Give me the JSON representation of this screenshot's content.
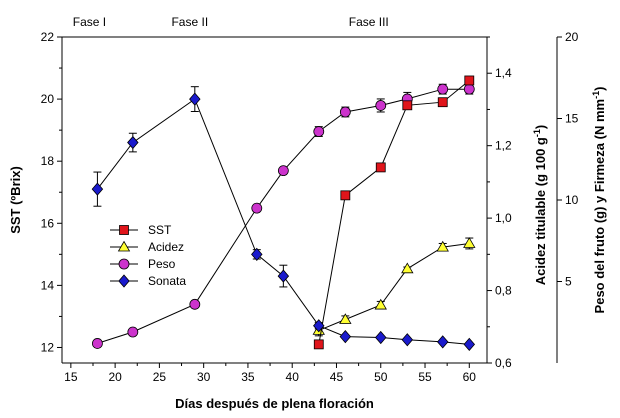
{
  "chart_data": {
    "type": "line",
    "phases": [
      "Fase I",
      "Fase II",
      "Fase III"
    ],
    "xlabel": "Días después de plena floración",
    "ylabel_left": "SST (ºBrix)",
    "ylabel_right1": "Acidez titulable (g 100 g",
    "ylabel_right1_sup": "-1",
    "ylabel_right1_end": ")",
    "ylabel_right2": "Peso del fruto (g) y Firmeza (N mm",
    "ylabel_right2_sup": "-1",
    "ylabel_right2_end": ")",
    "xlim": [
      14,
      62
    ],
    "xticks": [
      15,
      20,
      25,
      30,
      35,
      40,
      45,
      50,
      55,
      60
    ],
    "ylim_left": [
      11.5,
      22
    ],
    "yticks_left": [
      12,
      14,
      16,
      18,
      20,
      22
    ],
    "ylim_right1": [
      0.6,
      1.5
    ],
    "yticks_right1": [
      "0,6",
      "0,8",
      "1,0",
      "1,2",
      "1,4"
    ],
    "yticks_right1_values": [
      0.6,
      0.8,
      1.0,
      1.2,
      1.4
    ],
    "ylim_right2": [
      0,
      20
    ],
    "yticks_right2": [
      5,
      10,
      15,
      20
    ],
    "legend_position": "middle-left",
    "series": [
      {
        "name": "SST",
        "axis": "left",
        "marker": "square",
        "color": "#e0151b",
        "x": [
          43,
          46,
          50,
          53,
          57,
          60
        ],
        "y": [
          12.1,
          16.9,
          17.8,
          19.8,
          19.9,
          20.6
        ],
        "err": [
          0,
          0,
          0,
          0,
          0,
          0
        ]
      },
      {
        "name": "Acidez",
        "axis": "right1",
        "marker": "triangle",
        "color": "#ffff33",
        "x": [
          43,
          46,
          50,
          53,
          57,
          60
        ],
        "y": [
          0.69,
          0.72,
          0.76,
          0.86,
          0.92,
          0.93
        ],
        "err": [
          0.015,
          0.01,
          0.01,
          0.005,
          0.01,
          0.015
        ]
      },
      {
        "name": "Peso",
        "axis": "right2",
        "marker": "circle",
        "color": "#cc33cc",
        "x": [
          18,
          22,
          29,
          36,
          39,
          43,
          46,
          50,
          53,
          57,
          60
        ],
        "y": [
          1.2,
          1.9,
          3.6,
          9.5,
          11.8,
          14.2,
          15.4,
          15.8,
          16.2,
          16.8,
          16.8
        ],
        "err": [
          0,
          0,
          0,
          0,
          0,
          0.3,
          0.3,
          0.4,
          0.4,
          0.3,
          0.3
        ]
      },
      {
        "name": "Sonata",
        "axis": "left",
        "marker": "diamond",
        "color": "#1a1acc",
        "x": [
          18,
          22,
          29,
          36,
          39,
          43,
          46,
          50,
          53,
          57,
          60
        ],
        "y": [
          17.1,
          18.6,
          20.0,
          15.0,
          14.3,
          12.7,
          12.35,
          12.32,
          12.25,
          12.18,
          12.1
        ],
        "err": [
          0.55,
          0.3,
          0.4,
          0.15,
          0.35,
          0.1,
          0,
          0,
          0,
          0,
          0
        ]
      }
    ]
  }
}
